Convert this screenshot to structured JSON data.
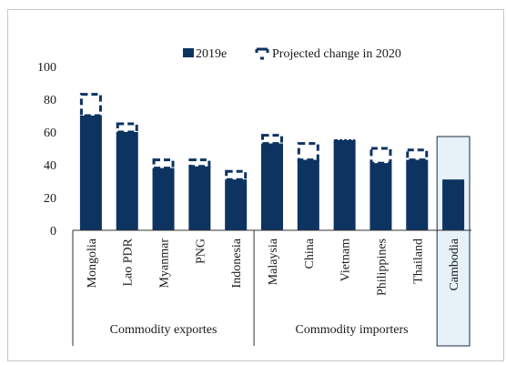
{
  "chart_data": {
    "type": "bar",
    "categories": [
      "Mongolia",
      "Lao PDR",
      "Myanmar",
      "PNG",
      "Indonesia",
      "Malaysia",
      "China",
      "Vietnam",
      "Philippines",
      "Thailand",
      "Cambodia"
    ],
    "series": [
      {
        "name": "2019e",
        "values": [
          70,
          60,
          38,
          39,
          31,
          53,
          43,
          55,
          41,
          43,
          31
        ]
      },
      {
        "name": "Projected change in 2020",
        "values": [
          13,
          5,
          5,
          4,
          5,
          5,
          10,
          -1,
          9,
          6,
          0
        ]
      }
    ],
    "groups": [
      {
        "label": "Commodity exportes",
        "categories": [
          "Mongolia",
          "Lao PDR",
          "Myanmar",
          "PNG",
          "Indonesia"
        ]
      },
      {
        "label": "Commodity importers",
        "categories": [
          "Malaysia",
          "China",
          "Vietnam",
          "Philippines",
          "Thailand",
          "Cambodia"
        ]
      }
    ],
    "highlight": "Cambodia",
    "ylim": [
      0,
      100
    ],
    "yticks": [
      "0",
      "20",
      "40",
      "60",
      "80",
      "100"
    ],
    "legend_position": "top-right",
    "grid": false,
    "colors": {
      "bar": "#0d3361",
      "projected_outline": "#0d3361",
      "highlight_fill": "#e6f1f8",
      "highlight_border": "#1f2a44"
    }
  }
}
